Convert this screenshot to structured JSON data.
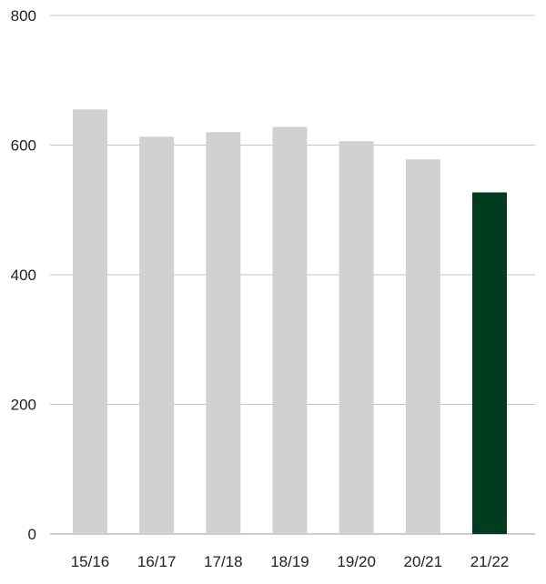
{
  "chart_data": {
    "type": "bar",
    "title": "",
    "xlabel": "",
    "ylabel": "",
    "categories": [
      "15/16",
      "16/17",
      "17/18",
      "18/19",
      "19/20",
      "20/21",
      "21/22"
    ],
    "values": [
      655,
      613,
      620,
      628,
      606,
      578,
      527
    ],
    "ylim": [
      0,
      800
    ],
    "yticks": [
      0,
      200,
      400,
      600,
      800
    ],
    "grid": true,
    "highlight_index": 6,
    "colors": {
      "bar": "#d0d1d3",
      "highlight": "#003d20",
      "grid": "#c4c4c4",
      "axis": "#999999"
    }
  }
}
